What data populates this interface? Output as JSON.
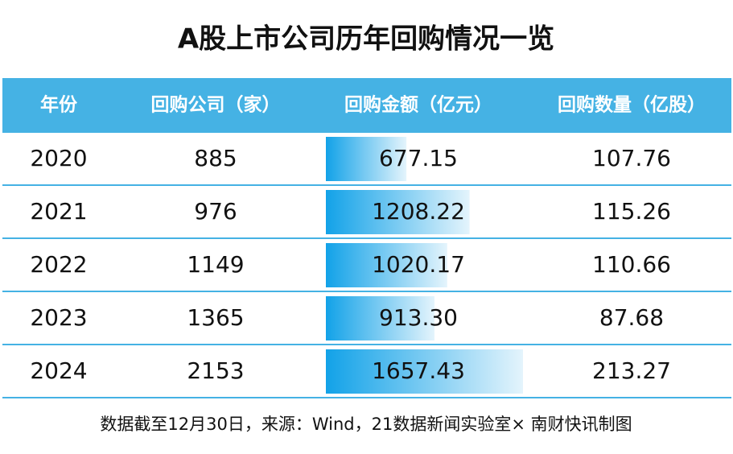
{
  "header": {
    "title": "A股上市公司历年回购情况一览"
  },
  "table": {
    "columns": [
      "年份",
      "回购公司（家）",
      "回购金额（亿元）",
      "回购数量（亿股）"
    ],
    "rows": [
      [
        "2020",
        "885",
        "677.15",
        "107.76"
      ],
      [
        "2021",
        "976",
        "1208.22",
        "115.26"
      ],
      [
        "2022",
        "1149",
        "1020.17",
        "110.66"
      ],
      [
        "2023",
        "1365",
        "913.30",
        "87.68"
      ],
      [
        "2024",
        "2153",
        "1657.43",
        "213.27"
      ]
    ]
  },
  "footer": {
    "source": "数据截至12月30日，来源：Wind，21数据新闻实验室× 南财快讯制图"
  }
}
